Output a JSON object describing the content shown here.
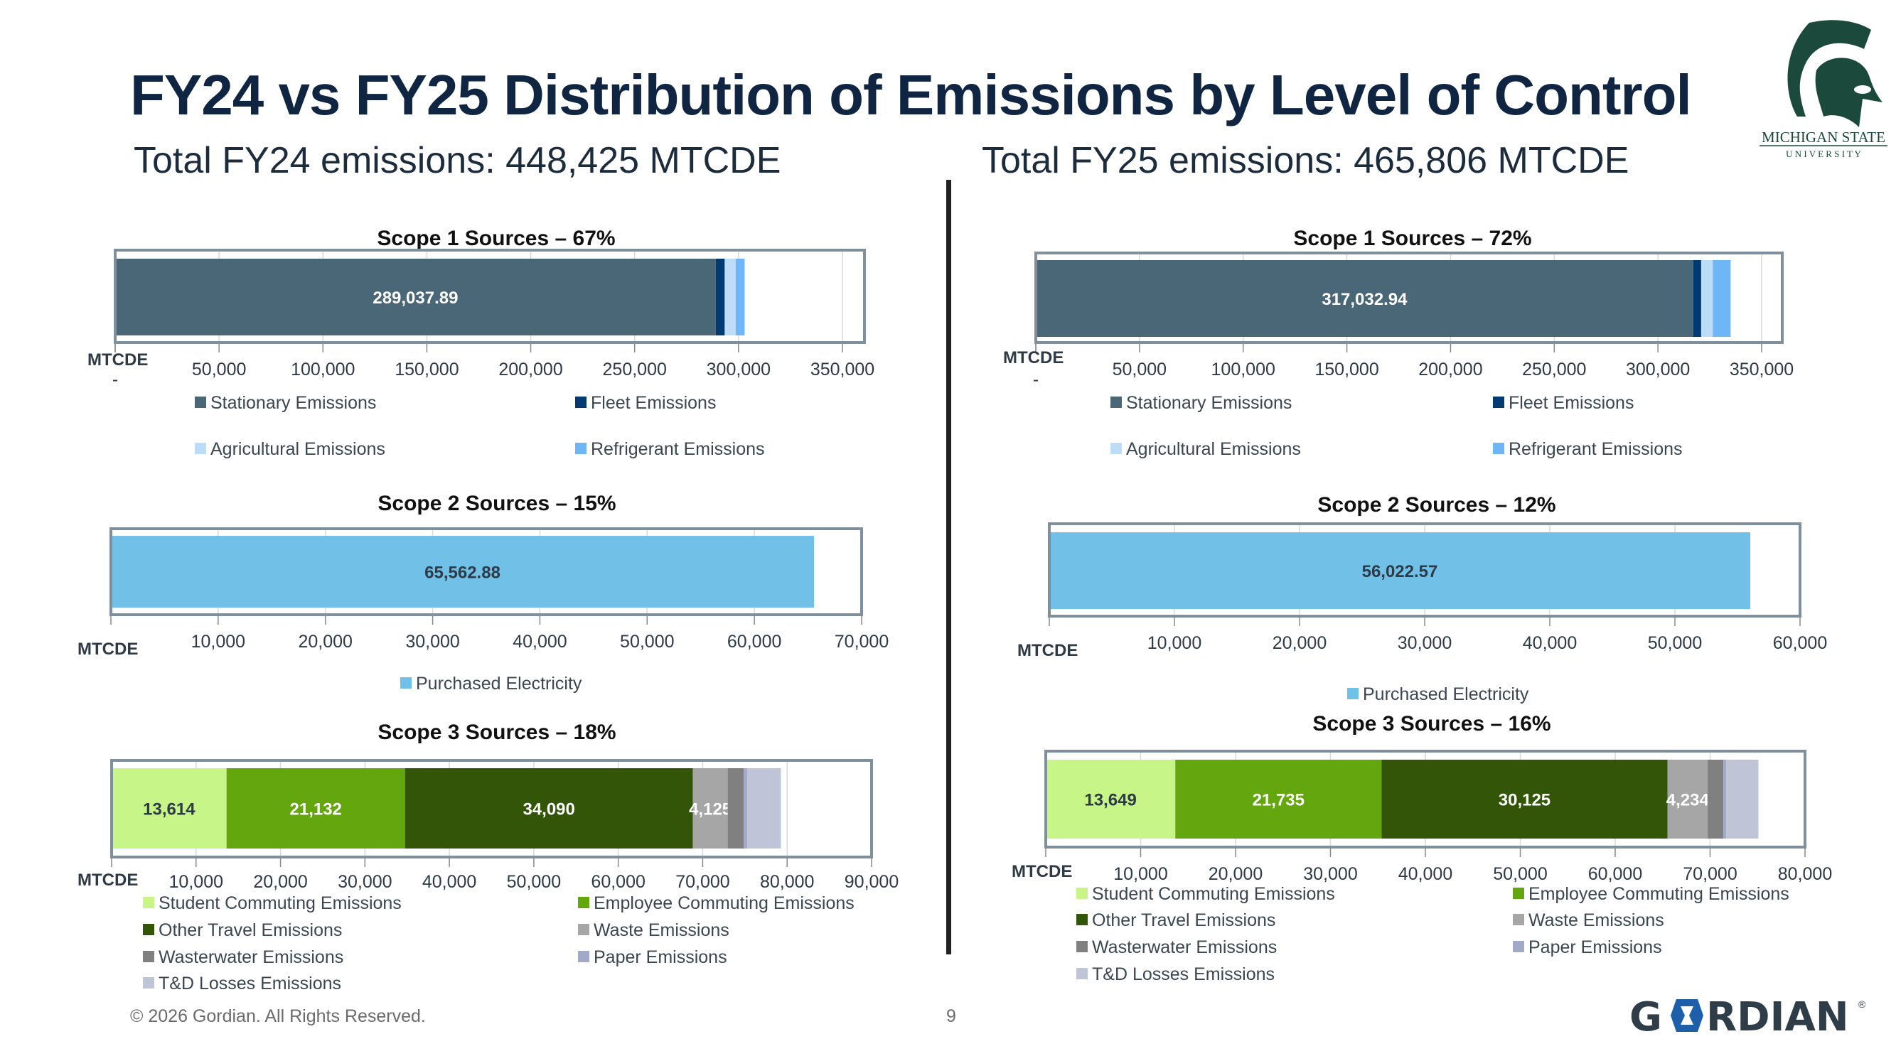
{
  "header": {
    "title": "FY24 vs FY25 Distribution of Emissions by Level of Control",
    "fy24_total": "Total FY24 emissions: 448,425 MTCDE",
    "fy25_total": "Total FY25 emissions: 465,806 MTCDE"
  },
  "footer": {
    "copyright": "© 2026 Gordian. All Rights Reserved.",
    "page": "9"
  },
  "logos": {
    "msu_line1": "MICHIGAN STATE",
    "msu_line2": "U N I V E R S I T Y",
    "gordian": "GORDIAN"
  },
  "chart_data": [
    {
      "type": "bar",
      "orientation": "horizontal-stacked",
      "title": "Scope 1 Sources – 67%",
      "xlabel": "MTCDE",
      "xlim": [
        0,
        360000
      ],
      "ticks": [
        [
          0,
          "-"
        ],
        [
          50000,
          "50,000"
        ],
        [
          100000,
          "100,000"
        ],
        [
          150000,
          "150,000"
        ],
        [
          200000,
          "200,000"
        ],
        [
          250000,
          "250,000"
        ],
        [
          300000,
          "300,000"
        ],
        [
          350000,
          "350,000"
        ]
      ],
      "series": [
        {
          "name": "Stationary Emissions",
          "value": 289037.89,
          "color": "#4a6778",
          "label": "289,037.89",
          "label_color": "#ffffff"
        },
        {
          "name": "Fleet Emissions",
          "value": 4300,
          "color": "#003a70"
        },
        {
          "name": "Agricultural Emissions",
          "value": 5300,
          "color": "#bcdcf7"
        },
        {
          "name": "Refrigerant Emissions",
          "value": 4300,
          "color": "#6fb6f7"
        }
      ]
    },
    {
      "type": "bar",
      "orientation": "horizontal-stacked",
      "title": "Scope 1 Sources – 72%",
      "xlabel": "MTCDE",
      "xlim": [
        0,
        360000
      ],
      "ticks": [
        [
          0,
          "-"
        ],
        [
          50000,
          "50,000"
        ],
        [
          100000,
          "100,000"
        ],
        [
          150000,
          "150,000"
        ],
        [
          200000,
          "200,000"
        ],
        [
          250000,
          "250,000"
        ],
        [
          300000,
          "300,000"
        ],
        [
          350000,
          "350,000"
        ]
      ],
      "series": [
        {
          "name": "Stationary Emissions",
          "value": 317032.94,
          "color": "#4a6778",
          "label": "317,032.94",
          "label_color": "#ffffff"
        },
        {
          "name": "Fleet Emissions",
          "value": 3800,
          "color": "#003a70"
        },
        {
          "name": "Agricultural Emissions",
          "value": 5600,
          "color": "#bcdcf7"
        },
        {
          "name": "Refrigerant Emissions",
          "value": 8600,
          "color": "#6fb6f7"
        }
      ]
    },
    {
      "type": "bar",
      "orientation": "horizontal-stacked",
      "title": "Scope 2 Sources – 15%",
      "xlabel": "MTCDE",
      "xlim": [
        0,
        70000
      ],
      "ticks": [
        [
          10000,
          "10,000"
        ],
        [
          20000,
          "20,000"
        ],
        [
          30000,
          "30,000"
        ],
        [
          40000,
          "40,000"
        ],
        [
          50000,
          "50,000"
        ],
        [
          60000,
          "60,000"
        ],
        [
          70000,
          "70,000"
        ]
      ],
      "series": [
        {
          "name": "Purchased Electricity",
          "value": 65562.88,
          "color": "#71c0e8",
          "label": "65,562.88",
          "label_color": "#2e3a46"
        }
      ]
    },
    {
      "type": "bar",
      "orientation": "horizontal-stacked",
      "title": "Scope 2 Sources – 12%",
      "xlabel": "MTCDE",
      "xlim": [
        0,
        60000
      ],
      "ticks": [
        [
          10000,
          "10,000"
        ],
        [
          20000,
          "20,000"
        ],
        [
          30000,
          "30,000"
        ],
        [
          40000,
          "40,000"
        ],
        [
          50000,
          "50,000"
        ],
        [
          60000,
          "60,000"
        ]
      ],
      "series": [
        {
          "name": "Purchased Electricity",
          "value": 56022.57,
          "color": "#71c0e8",
          "label": "56,022.57",
          "label_color": "#2e3a46"
        }
      ]
    },
    {
      "type": "bar",
      "orientation": "horizontal-stacked",
      "title": "Scope 3 Sources – 18%",
      "xlabel": "MTCDE",
      "xlim": [
        0,
        90000
      ],
      "ticks": [
        [
          10000,
          "10,000"
        ],
        [
          20000,
          "20,000"
        ],
        [
          30000,
          "30,000"
        ],
        [
          40000,
          "40,000"
        ],
        [
          50000,
          "50,000"
        ],
        [
          60000,
          "60,000"
        ],
        [
          70000,
          "70,000"
        ],
        [
          80000,
          "80,000"
        ],
        [
          90000,
          "90,000"
        ]
      ],
      "series": [
        {
          "name": "Student Commuting Emissions",
          "value": 13614,
          "color": "#c7f587",
          "label": "13,614",
          "label_color": "#2e3a46"
        },
        {
          "name": "Employee Commuting Emissions",
          "value": 21132,
          "color": "#63a60d",
          "label": "21,132",
          "label_color": "#ffffff"
        },
        {
          "name": "Other Travel Emissions",
          "value": 34090,
          "color": "#335507",
          "label": "34,090",
          "label_color": "#ffffff"
        },
        {
          "name": "Waste Emissions",
          "value": 4125,
          "color": "#a6a6a6",
          "label": "4,125",
          "label_color": "#ffffff"
        },
        {
          "name": "Wasterwater  Emissions",
          "value": 1900,
          "color": "#808080"
        },
        {
          "name": "Paper Emissions",
          "value": 400,
          "color": "#a0aac8"
        },
        {
          "name": "T&D Losses Emissions",
          "value": 4000,
          "color": "#bfc5d6"
        }
      ]
    },
    {
      "type": "bar",
      "orientation": "horizontal-stacked",
      "title": "Scope 3 Sources – 16%",
      "xlabel": "MTCDE",
      "xlim": [
        0,
        80000
      ],
      "ticks": [
        [
          10000,
          "10,000"
        ],
        [
          20000,
          "20,000"
        ],
        [
          30000,
          "30,000"
        ],
        [
          40000,
          "40,000"
        ],
        [
          50000,
          "50,000"
        ],
        [
          60000,
          "60,000"
        ],
        [
          70000,
          "70,000"
        ],
        [
          80000,
          "80,000"
        ]
      ],
      "series": [
        {
          "name": "Student Commuting Emissions",
          "value": 13649,
          "color": "#c7f587",
          "label": "13,649",
          "label_color": "#2e3a46"
        },
        {
          "name": "Employee Commuting Emissions",
          "value": 21735,
          "color": "#63a60d",
          "label": "21,735",
          "label_color": "#ffffff"
        },
        {
          "name": "Other Travel Emissions",
          "value": 30125,
          "color": "#335507",
          "label": "30,125",
          "label_color": "#ffffff"
        },
        {
          "name": "Waste Emissions",
          "value": 4234,
          "color": "#a6a6a6",
          "label": "4,234",
          "label_color": "#ffffff"
        },
        {
          "name": "Wasterwater  Emissions",
          "value": 1650,
          "color": "#808080"
        },
        {
          "name": "Paper Emissions",
          "value": 300,
          "color": "#a0aac8"
        },
        {
          "name": "T&D Losses Emissions",
          "value": 3400,
          "color": "#bfc5d6"
        }
      ]
    }
  ]
}
